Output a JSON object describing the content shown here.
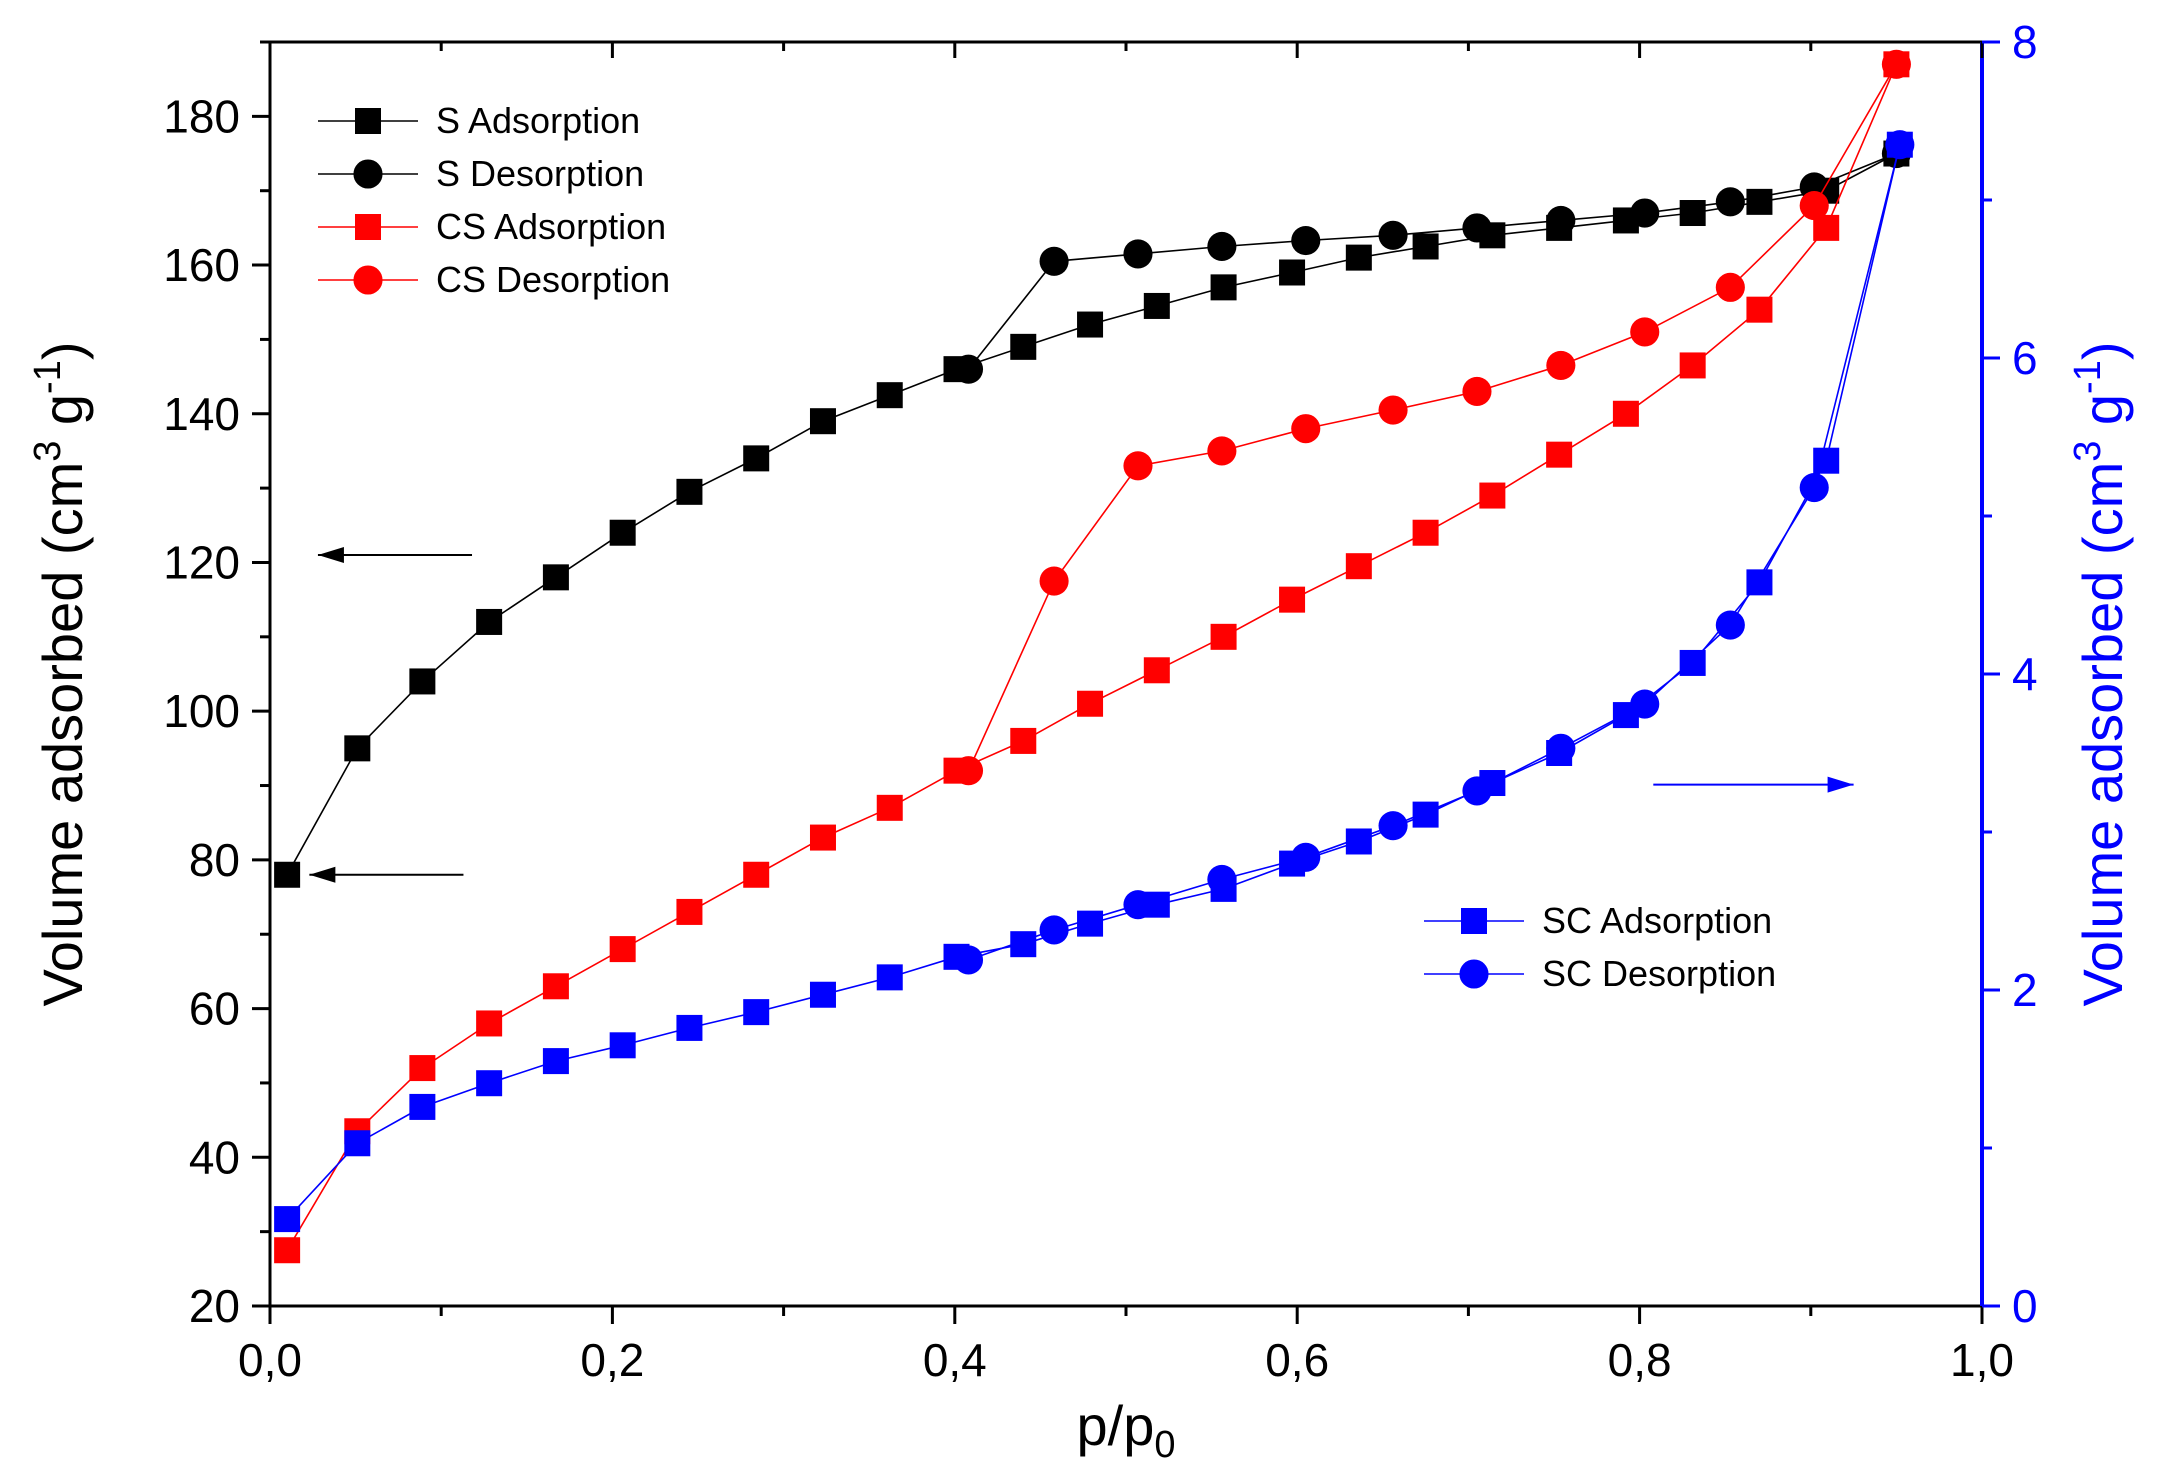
{
  "chart_data": {
    "type": "line",
    "xlabel": "p/p",
    "xlabel_sub": "0",
    "ylabel_left": "Volume adsorbed (cm",
    "ylabel_left_sup1": "3",
    "ylabel_left_mid": " g",
    "ylabel_left_sup2": "-1",
    "ylabel_left_end": ")",
    "ylabel_right": "Volume adsorbed (cm",
    "ylabel_right_sup1": "3",
    "ylabel_right_mid": " g",
    "ylabel_right_sup2": "-1",
    "ylabel_right_end": ")",
    "xlim": [
      0.0,
      1.0
    ],
    "ylim_left": [
      20,
      190
    ],
    "ylim_right": [
      0,
      8
    ],
    "x_ticks": [
      "0,0",
      "0,2",
      "0,4",
      "0,6",
      "0,8",
      "1,0"
    ],
    "x_tick_values": [
      0.0,
      0.2,
      0.4,
      0.6,
      0.8,
      1.0
    ],
    "y_left_ticks": [
      "20",
      "40",
      "60",
      "80",
      "100",
      "120",
      "140",
      "160",
      "180"
    ],
    "y_left_tick_values": [
      20,
      40,
      60,
      80,
      100,
      120,
      140,
      160,
      180
    ],
    "y_right_ticks": [
      "0",
      "2",
      "4",
      "6",
      "8"
    ],
    "y_right_tick_values": [
      0,
      2,
      4,
      6,
      8
    ],
    "colors": {
      "black": "#000000",
      "red": "#ff0000",
      "blue": "#0000ff",
      "axis_right": "#0000ff"
    },
    "legend_left": {
      "placement": "top-left",
      "entries": [
        {
          "label": "S Adsorption",
          "series": 0
        },
        {
          "label": "S Desorption",
          "series": 1
        },
        {
          "label": "CS Adsorption",
          "series": 2
        },
        {
          "label": "CS Desorption",
          "series": 3
        }
      ]
    },
    "legend_right": {
      "placement": "bottom-right",
      "entries": [
        {
          "label": "SC Adsorption",
          "series": 4
        },
        {
          "label": "SC Desorption",
          "series": 5
        }
      ]
    },
    "series": [
      {
        "name": "S Adsorption",
        "color": "#000000",
        "marker": "square",
        "axis": "left",
        "x": [
          0.01,
          0.051,
          0.089,
          0.128,
          0.167,
          0.206,
          0.245,
          0.284,
          0.323,
          0.362,
          0.401,
          0.44,
          0.479,
          0.518,
          0.557,
          0.597,
          0.636,
          0.675,
          0.714,
          0.753,
          0.792,
          0.831,
          0.87,
          0.909,
          0.95
        ],
        "y": [
          78,
          95,
          104,
          112,
          118,
          124,
          129.5,
          134,
          139,
          142.5,
          146,
          149,
          152,
          154.5,
          157,
          159,
          161,
          162.5,
          164,
          165,
          166,
          167,
          168.5,
          170,
          175
        ]
      },
      {
        "name": "S Desorption",
        "color": "#000000",
        "marker": "circle",
        "axis": "left",
        "x": [
          0.95,
          0.902,
          0.853,
          0.803,
          0.754,
          0.705,
          0.656,
          0.605,
          0.556,
          0.507,
          0.458,
          0.408
        ],
        "y": [
          175,
          170.5,
          168.5,
          167,
          166,
          165,
          164,
          163.3,
          162.5,
          161.5,
          160.5,
          146
        ]
      },
      {
        "name": "CS Adsorption",
        "color": "#ff0000",
        "marker": "square",
        "axis": "left",
        "x": [
          0.01,
          0.051,
          0.089,
          0.128,
          0.167,
          0.206,
          0.245,
          0.284,
          0.323,
          0.362,
          0.401,
          0.44,
          0.479,
          0.518,
          0.557,
          0.597,
          0.636,
          0.675,
          0.714,
          0.753,
          0.792,
          0.831,
          0.87,
          0.909,
          0.95
        ],
        "y": [
          27.5,
          43.5,
          52,
          58,
          63,
          68,
          73,
          78,
          83,
          87,
          92,
          96,
          101,
          105.5,
          110,
          115,
          119.5,
          124,
          129,
          134.5,
          140,
          146.5,
          154,
          165,
          187
        ]
      },
      {
        "name": "CS Desorption",
        "color": "#ff0000",
        "marker": "circle",
        "axis": "left",
        "x": [
          0.95,
          0.902,
          0.853,
          0.803,
          0.754,
          0.705,
          0.656,
          0.605,
          0.556,
          0.507,
          0.458,
          0.408
        ],
        "y": [
          187,
          168,
          157,
          151,
          146.5,
          143,
          140.5,
          138,
          135,
          133,
          117.5,
          92
        ]
      },
      {
        "name": "SC Adsorption",
        "color": "#0000ff",
        "marker": "square",
        "axis": "right",
        "x": [
          0.01,
          0.051,
          0.089,
          0.128,
          0.167,
          0.206,
          0.245,
          0.284,
          0.323,
          0.362,
          0.401,
          0.44,
          0.479,
          0.518,
          0.557,
          0.597,
          0.636,
          0.675,
          0.714,
          0.753,
          0.792,
          0.831,
          0.87,
          0.909,
          0.952
        ],
        "y": [
          0.55,
          1.03,
          1.26,
          1.41,
          1.55,
          1.65,
          1.76,
          1.86,
          1.97,
          2.08,
          2.21,
          2.29,
          2.42,
          2.54,
          2.64,
          2.8,
          2.94,
          3.11,
          3.31,
          3.5,
          3.74,
          4.07,
          4.58,
          5.35,
          7.35
        ]
      },
      {
        "name": "SC Desorption",
        "color": "#0000ff",
        "marker": "circle",
        "axis": "right",
        "x": [
          0.952,
          0.902,
          0.853,
          0.803,
          0.754,
          0.705,
          0.656,
          0.605,
          0.556,
          0.507,
          0.458,
          0.408
        ],
        "y": [
          7.35,
          5.18,
          4.31,
          3.81,
          3.53,
          3.26,
          3.04,
          2.84,
          2.7,
          2.54,
          2.38,
          2.19
        ]
      }
    ],
    "annotations": [
      {
        "type": "arrow",
        "points_to": "left-axis",
        "near_y": 121,
        "axis": "left",
        "x_from": 0.118,
        "x_to": 0.028,
        "color": "#000000"
      },
      {
        "type": "arrow",
        "points_to": "left-axis",
        "near_y": 78,
        "axis": "left",
        "x_from": 0.113,
        "x_to": 0.023,
        "color": "#000000"
      },
      {
        "type": "arrow",
        "points_to": "right-axis",
        "near_y": 3.3,
        "axis": "right",
        "x_from": 0.808,
        "x_to": 0.925,
        "color": "#0000ff"
      }
    ]
  }
}
